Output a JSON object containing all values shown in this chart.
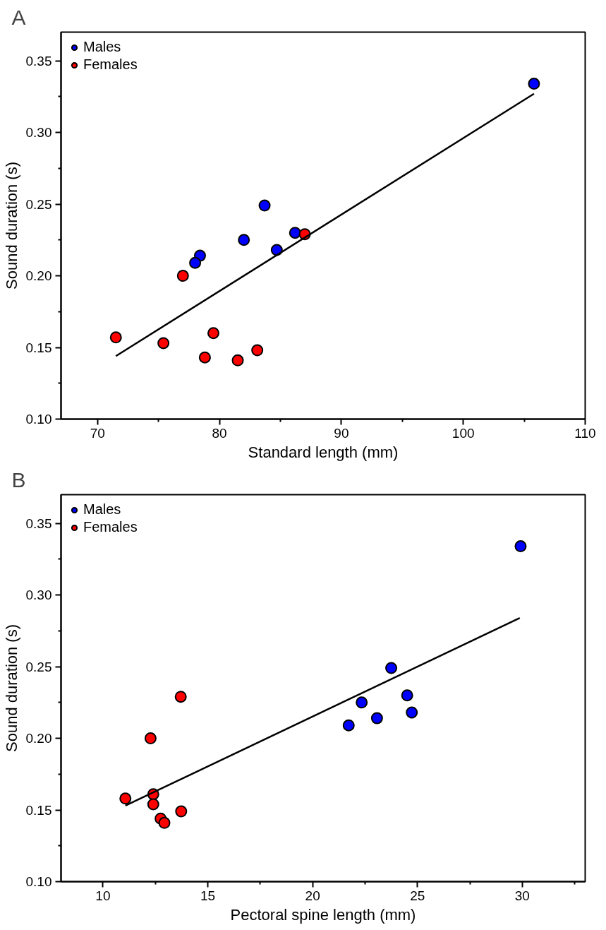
{
  "chart_data": [
    {
      "type": "scatter",
      "title": "A",
      "xlabel": "Standard length (mm)",
      "ylabel": "Sound duration (s)",
      "xlim": [
        67,
        110
      ],
      "xticks": [
        70,
        {
          "value": 75,
          "label": null
        },
        80,
        {
          "value": 85,
          "label": null
        },
        90,
        {
          "value": 95,
          "label": null
        },
        100,
        {
          "value": 105,
          "label": null
        },
        110
      ],
      "ylim": [
        0.1,
        0.37
      ],
      "yticks": [
        {
          "value": 0.1,
          "label": "0.10"
        },
        {
          "value": 0.125,
          "label": null
        },
        0.15,
        {
          "value": 0.175,
          "label": null
        },
        {
          "value": 0.2,
          "label": "0.20"
        },
        {
          "value": 0.225,
          "label": null
        },
        0.25,
        {
          "value": 0.275,
          "label": null
        },
        {
          "value": 0.3,
          "label": "0.30"
        },
        {
          "value": 0.325,
          "label": null
        },
        0.35
      ],
      "grid": false,
      "legend": "top left",
      "marker": "circle",
      "series": [
        {
          "name": "Males",
          "color": "#0000ff",
          "x": [
            105.8,
            83.7,
            82.0,
            86.2,
            84.7,
            78.4,
            78.0
          ],
          "values": [
            0.334,
            0.249,
            0.225,
            0.23,
            0.218,
            0.214,
            0.209
          ]
        },
        {
          "name": "Females",
          "color": "#ff0000",
          "x": [
            71.5,
            75.4,
            77.0,
            79.5,
            78.8,
            81.5,
            83.1,
            87.0
          ],
          "values": [
            0.157,
            0.153,
            0.2,
            0.16,
            0.143,
            0.141,
            0.148,
            0.229
          ]
        },
        {
          "type": "line",
          "color": "#000000",
          "line_style": "solid",
          "marker": "none",
          "x": [
            71.5,
            105.8
          ],
          "values": [
            0.144,
            0.327
          ]
        }
      ]
    },
    {
      "type": "scatter",
      "title": "B",
      "xlabel": "Pectoral spine length (mm)",
      "ylabel": "Sound duration (s)",
      "xlim": [
        8,
        33
      ],
      "xticks": [
        10,
        {
          "value": 12.5,
          "label": null
        },
        15,
        {
          "value": 17.5,
          "label": null
        },
        20,
        {
          "value": 22.5,
          "label": null
        },
        25,
        {
          "value": 27.5,
          "label": null
        },
        30,
        {
          "value": 32.5,
          "label": null
        }
      ],
      "ylim": [
        0.1,
        0.37
      ],
      "yticks": [
        {
          "value": 0.1,
          "label": "0.10"
        },
        {
          "value": 0.125,
          "label": null
        },
        0.15,
        {
          "value": 0.175,
          "label": null
        },
        {
          "value": 0.2,
          "label": "0.20"
        },
        {
          "value": 0.225,
          "label": null
        },
        0.25,
        {
          "value": 0.275,
          "label": null
        },
        {
          "value": 0.3,
          "label": "0.30"
        },
        {
          "value": 0.325,
          "label": null
        },
        0.35
      ],
      "grid": false,
      "legend": "top left",
      "marker": "circle",
      "series": [
        {
          "name": "Males",
          "color": "#0000ff",
          "x": [
            29.92,
            23.75,
            22.34,
            24.51,
            24.73,
            23.07,
            21.72
          ],
          "values": [
            0.334,
            0.249,
            0.225,
            0.23,
            0.218,
            0.214,
            0.209
          ]
        },
        {
          "name": "Females",
          "color": "#ff0000",
          "x": [
            11.07,
            12.4,
            12.4,
            12.27,
            13.71,
            13.73,
            12.75,
            12.93
          ],
          "values": [
            0.158,
            0.161,
            0.154,
            0.2,
            0.229,
            0.149,
            0.144,
            0.141
          ]
        },
        {
          "type": "line",
          "color": "#000000",
          "line_style": "solid",
          "marker": "none",
          "x": [
            11.07,
            29.88
          ],
          "values": [
            0.153,
            0.284
          ]
        }
      ]
    }
  ]
}
